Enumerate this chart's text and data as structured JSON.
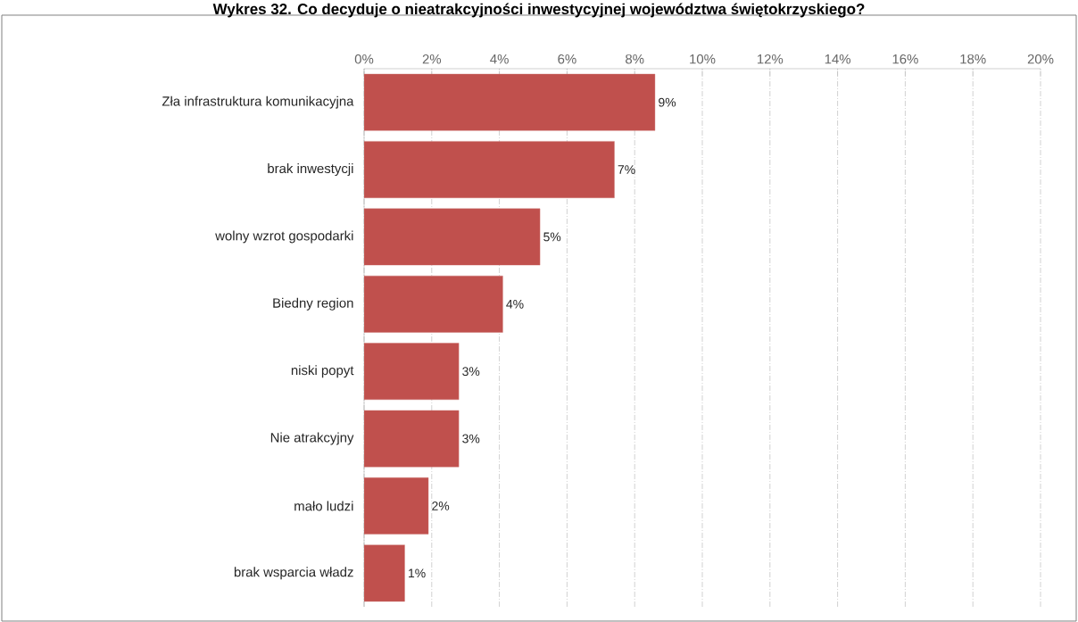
{
  "chart_data": {
    "type": "bar",
    "orientation": "horizontal",
    "title": "Wykres 32. Co decyduje o nieatrakcyjności inwestycyjnej województwa świętokrzyskiego?",
    "categories": [
      "Zła infrastruktura komunikacyjna",
      "brak inwestycji",
      "wolny wzrot gospodarki",
      "Biedny region",
      "niski popyt",
      "Nie atrakcyjny",
      "mało ludzi",
      "brak wsparcia władz"
    ],
    "values": [
      8.6,
      7.4,
      5.2,
      4.1,
      2.8,
      2.8,
      1.9,
      1.2
    ],
    "value_labels": [
      "9%",
      "7%",
      "5%",
      "4%",
      "3%",
      "3%",
      "2%",
      "1%"
    ],
    "color": "#c0504d",
    "xlim": [
      0,
      20
    ],
    "xticks": [
      {
        "value": 0,
        "label": "0%"
      },
      {
        "value": 2,
        "label": "2%"
      },
      {
        "value": 4,
        "label": "4%"
      },
      {
        "value": 6,
        "label": "6%"
      },
      {
        "value": 8,
        "label": "8%"
      },
      {
        "value": 10,
        "label": "10%"
      },
      {
        "value": 12,
        "label": "12%"
      },
      {
        "value": 14,
        "label": "14%"
      },
      {
        "value": 16,
        "label": "16%"
      },
      {
        "value": 18,
        "label": "18%"
      },
      {
        "value": 20,
        "label": "20%"
      }
    ],
    "grid": "x"
  }
}
